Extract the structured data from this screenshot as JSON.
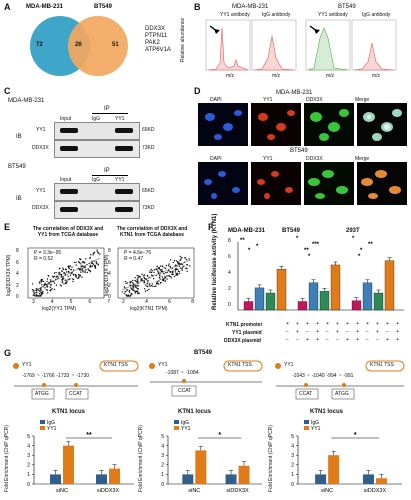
{
  "panels": {
    "A": "A",
    "B": "B",
    "C": "C",
    "D": "D",
    "E": "E",
    "F": "F",
    "G": "G"
  },
  "venn": {
    "left_label": "MDA-MB-231",
    "right_label": "BT549",
    "left_only": "72",
    "overlap": "26",
    "right_only": "51",
    "genes": [
      "DDX3X",
      "PTPN11",
      "PAK2",
      "ATP6V1A"
    ],
    "left_color": "#3fa6c9",
    "right_color": "#f2a75e"
  },
  "panelB": {
    "cell_left": "MDA-MB-231",
    "cell_right": "BT549",
    "yaxis": "Relative abundance",
    "yy1_label": "YY1 antibody",
    "igg_label": "IgG antibody",
    "xaxis": "m/z"
  },
  "panelC": {
    "cell1": "MDA-MB-231",
    "cell2": "BT549",
    "ib": "IB",
    "ip": "IP",
    "lanes": [
      "Input",
      "IgG",
      "YY1"
    ],
    "rows": [
      "YY1",
      "DDX3X"
    ],
    "kd": [
      "65KD",
      "73KD"
    ]
  },
  "panelD": {
    "cell1": "MDA-MB-231",
    "cell2": "BT549",
    "cols": [
      "DAPI",
      "YY1",
      "DDX3X",
      "Merge"
    ]
  },
  "panelE": {
    "title1": "The correlation of DDX3X and YY1 from TCGA database",
    "title2": "The correlation of DDX3X and KTN1 from TCGA database",
    "stat1_p": "P = 3.3e−95",
    "stat1_r": "R = 0.52",
    "stat2_p": "P = 4.6e−76",
    "stat2_r": "R = 0.47",
    "ylabel": "log2(DDX3X TPM)",
    "xlabel1": "log2(YY1 TPM)",
    "xlabel2": "log2(KTN1 TPM)",
    "xticks1": [
      "3",
      "4",
      "5",
      "6",
      "7"
    ],
    "xticks2": [
      "2",
      "4",
      "6",
      "8"
    ],
    "yticks": [
      "0",
      "2",
      "4",
      "6",
      "8"
    ]
  },
  "panelF": {
    "ylabel": "Relative luciferase activity (KTN1)",
    "groups": [
      "MDA-MB-231",
      "BT549",
      "293T"
    ],
    "yticks": [
      "0",
      "2",
      "4",
      "6",
      "8"
    ],
    "rows": [
      "KTN1 promoter",
      "YY1 plasmid",
      "DDX3X plasmid"
    ],
    "row_signs": [
      [
        "+",
        "+",
        "+",
        "+",
        "+",
        "+",
        "+",
        "+",
        "+",
        "+",
        "+",
        "+"
      ],
      [
        "−",
        "+",
        "−",
        "+",
        "−",
        "+",
        "−",
        "+",
        "−",
        "+",
        "−",
        "+"
      ],
      [
        "−",
        "−",
        "+",
        "+",
        "−",
        "−",
        "+",
        "+",
        "−",
        "−",
        "+",
        "+"
      ]
    ],
    "sig": [
      "**",
      "*",
      "*",
      "*",
      "***",
      "**",
      "*",
      "*",
      "**",
      "*",
      "*"
    ],
    "colors": [
      "#c2185b",
      "#3e7fb5",
      "#2e8b57",
      "#e07b1a"
    ]
  },
  "chart_data": [
    {
      "type": "bar",
      "ylabel": "Relative luciferase activity (KTN1)",
      "ylim": [
        0,
        8
      ],
      "groups": [
        "MDA-MB-231",
        "BT549",
        "293T"
      ],
      "series": [
        {
          "name": "",
          "values": [
            1.0,
            1.0,
            1.1
          ]
        },
        {
          "name": "",
          "values": [
            2.6,
            3.2,
            3.2
          ]
        },
        {
          "name": "",
          "values": [
            2.0,
            2.2,
            2.0
          ]
        },
        {
          "name": "",
          "values": [
            4.8,
            5.3,
            5.8
          ]
        }
      ]
    },
    {
      "type": "bar",
      "title": "KTN1 locus",
      "ylabel": "Fold Enrichment (ChIP qPCR)",
      "categories": [
        "siNC",
        "siDDX3X"
      ],
      "ylim": [
        0,
        5
      ],
      "series": [
        {
          "name": "IgG",
          "values": [
            1.0,
            1.0
          ]
        },
        {
          "name": "YY1",
          "values": [
            4.0,
            1.6
          ]
        }
      ]
    },
    {
      "type": "bar",
      "title": "KTN1 locus",
      "ylabel": "Fold Enrichment (ChIP qPCR)",
      "categories": [
        "siNC",
        "siDDX3X"
      ],
      "ylim": [
        0,
        5
      ],
      "series": [
        {
          "name": "IgG",
          "values": [
            1.0,
            1.0
          ]
        },
        {
          "name": "YY1",
          "values": [
            3.5,
            1.9
          ]
        }
      ]
    },
    {
      "type": "bar",
      "title": "KTN1 locus",
      "ylabel": "Fold Enrichment (ChIP qPCR)",
      "categories": [
        "siNC",
        "siDDX3X"
      ],
      "ylim": [
        0,
        5
      ],
      "series": [
        {
          "name": "IgG",
          "values": [
            1.0,
            1.0
          ]
        },
        {
          "name": "YY1",
          "values": [
            3.0,
            0.6
          ]
        }
      ]
    }
  ],
  "panelG": {
    "title": "BT549",
    "legend_yy1": "YY1",
    "tss": "KTN1 TSS",
    "sites1": [
      "-1769",
      "~",
      "-1766",
      "-1733",
      "~",
      "-1730"
    ],
    "boxes1": [
      "ATGG",
      "CCAT"
    ],
    "sites2": [
      "-1087",
      "~",
      "-1084"
    ],
    "boxes2": [
      "CCAT"
    ],
    "sites3": [
      "-1043",
      "~",
      "-1040",
      "-994",
      "~",
      "-991"
    ],
    "boxes3": [
      "CCAT",
      "ATGG"
    ],
    "locus": "KTN1 locus",
    "ylabel": "Fold Enrichment (ChIP qPCR)",
    "legend": [
      "IgG",
      "YY1"
    ],
    "xcats": [
      "siNC",
      "siDDX3X"
    ],
    "sig": [
      "**",
      "*",
      "*"
    ],
    "yticks": [
      "0",
      "1",
      "2",
      "3",
      "4",
      "5"
    ],
    "igg_color": "#2f5f8a",
    "yy1_color": "#e07b1a"
  }
}
